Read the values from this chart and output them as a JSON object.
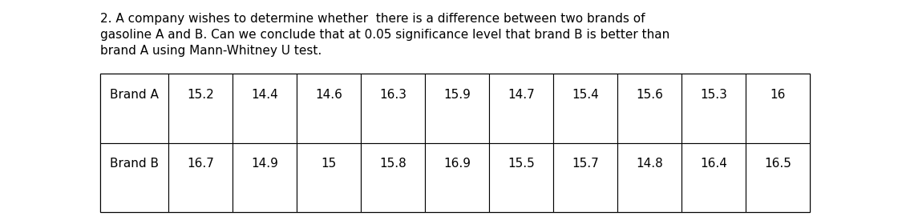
{
  "title_lines": [
    "2. A company wishes to determine whether  there is a difference between two brands of",
    "gasoline A and B. Can we conclude that at 0.05 significance level that brand B is better than",
    "brand A using Mann-Whitney U test."
  ],
  "brand_a_label": "Brand A",
  "brand_b_label": "Brand B",
  "brand_a_values": [
    "15.2",
    "14.4",
    "14.6",
    "16.3",
    "15.9",
    "14.7",
    "15.4",
    "15.6",
    "15.3",
    "16"
  ],
  "brand_b_values": [
    "16.7",
    "14.9",
    "15",
    "15.8",
    "16.9",
    "15.5",
    "15.7",
    "14.8",
    "16.4",
    "16.5"
  ],
  "background_color": "#ffffff",
  "text_color": "#000000",
  "title_fontsize": 11.0,
  "table_fontsize": 11.0,
  "fig_width": 11.25,
  "fig_height": 2.7
}
